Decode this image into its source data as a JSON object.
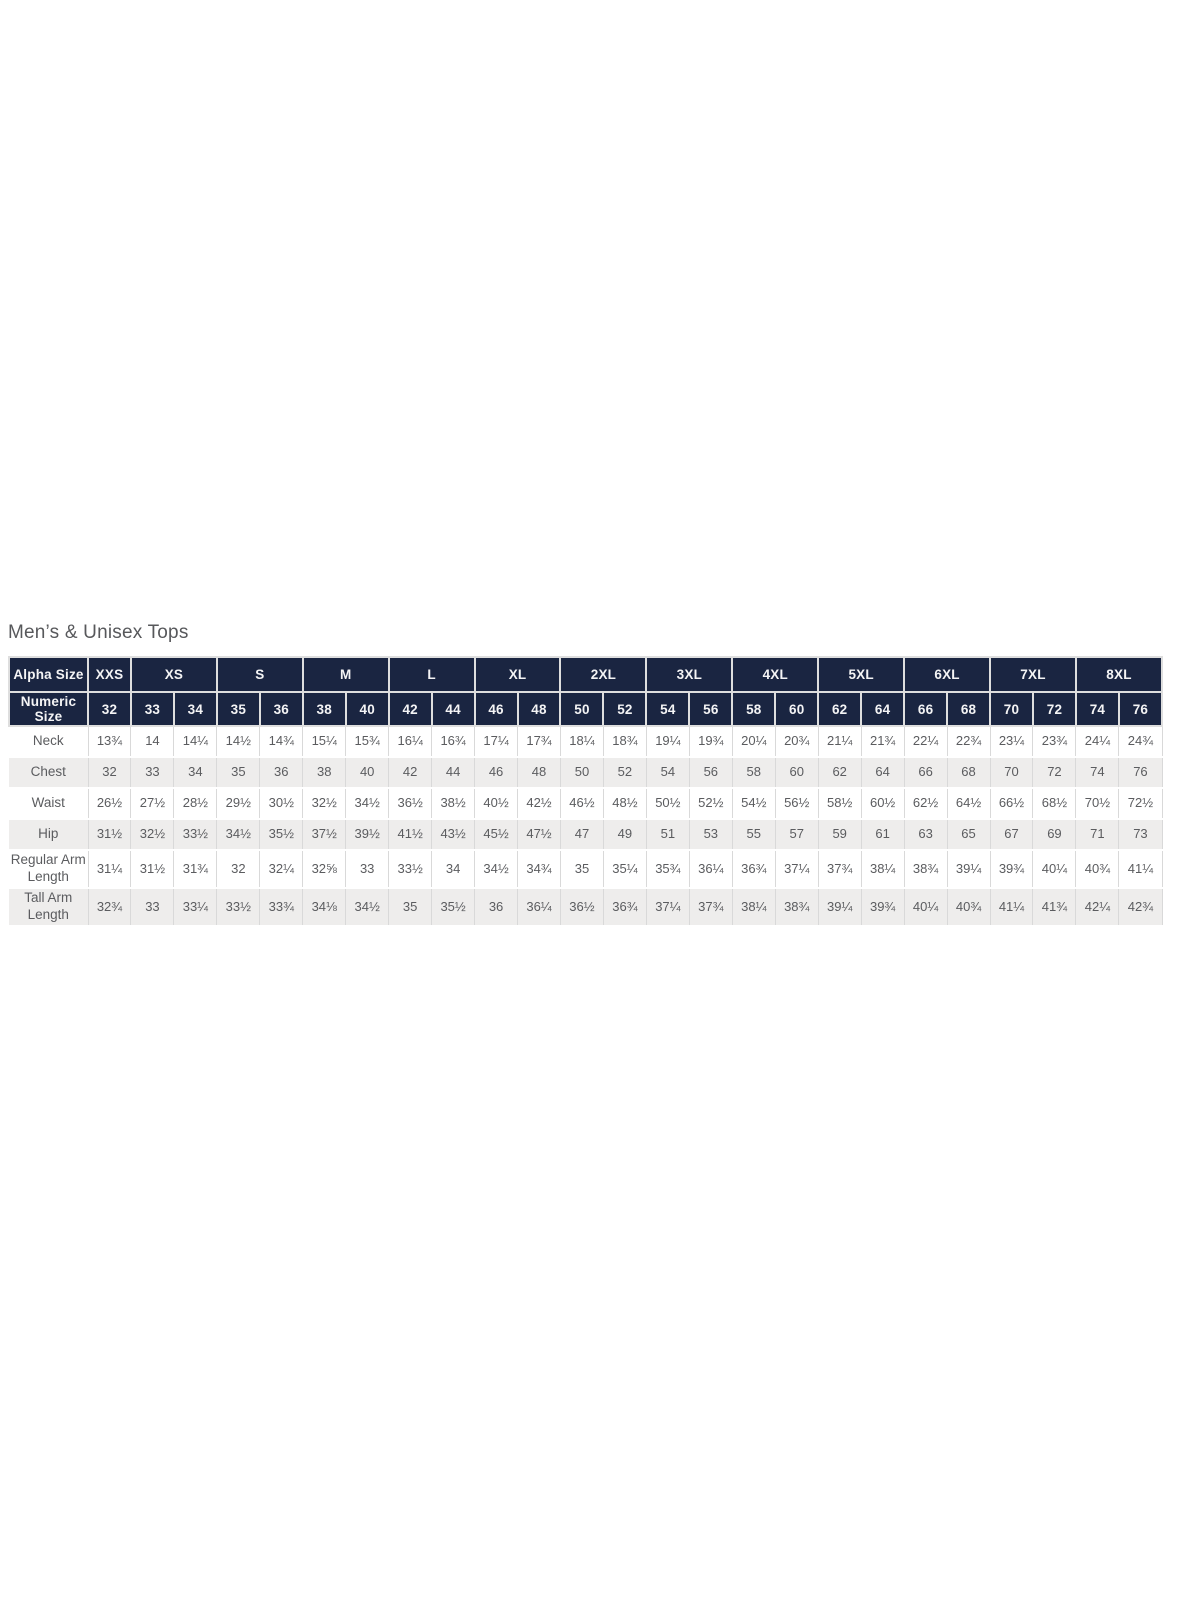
{
  "title": "Men’s & Unisex Tops",
  "colors": {
    "header_bg": "#1a2541",
    "header_text": "#f4f4f5",
    "body_text": "#5b5c5f",
    "row_bg": "#ffffff",
    "row_alt_bg": "#eeedec",
    "border": "#d9d9d9",
    "title_text": "#57585b"
  },
  "table": {
    "corner_label": "Alpha Size",
    "numeric_label": "Numeric Size",
    "alpha_sizes": [
      {
        "label": "XXS",
        "span": 1
      },
      {
        "label": "XS",
        "span": 2
      },
      {
        "label": "S",
        "span": 2
      },
      {
        "label": "M",
        "span": 2
      },
      {
        "label": "L",
        "span": 2
      },
      {
        "label": "XL",
        "span": 2
      },
      {
        "label": "2XL",
        "span": 2
      },
      {
        "label": "3XL",
        "span": 2
      },
      {
        "label": "4XL",
        "span": 2
      },
      {
        "label": "5XL",
        "span": 2
      },
      {
        "label": "6XL",
        "span": 2
      },
      {
        "label": "7XL",
        "span": 2
      },
      {
        "label": "8XL",
        "span": 2
      }
    ],
    "numeric_sizes": [
      "32",
      "33",
      "34",
      "35",
      "36",
      "38",
      "40",
      "42",
      "44",
      "46",
      "48",
      "50",
      "52",
      "54",
      "56",
      "58",
      "60",
      "62",
      "64",
      "66",
      "68",
      "70",
      "72",
      "74",
      "76"
    ],
    "rows": [
      {
        "label": "Neck",
        "values": [
          "13¾",
          "14",
          "14¼",
          "14½",
          "14¾",
          "15¼",
          "15¾",
          "16¼",
          "16¾",
          "17¼",
          "17¾",
          "18¼",
          "18¾",
          "19¼",
          "19¾",
          "20¼",
          "20¾",
          "21¼",
          "21¾",
          "22¼",
          "22¾",
          "23¼",
          "23¾",
          "24¼",
          "24¾"
        ]
      },
      {
        "label": "Chest",
        "values": [
          "32",
          "33",
          "34",
          "35",
          "36",
          "38",
          "40",
          "42",
          "44",
          "46",
          "48",
          "50",
          "52",
          "54",
          "56",
          "58",
          "60",
          "62",
          "64",
          "66",
          "68",
          "70",
          "72",
          "74",
          "76"
        ]
      },
      {
        "label": "Waist",
        "values": [
          "26½",
          "27½",
          "28½",
          "29½",
          "30½",
          "32½",
          "34½",
          "36½",
          "38½",
          "40½",
          "42½",
          "46½",
          "48½",
          "50½",
          "52½",
          "54½",
          "56½",
          "58½",
          "60½",
          "62½",
          "64½",
          "66½",
          "68½",
          "70½",
          "72½"
        ]
      },
      {
        "label": "Hip",
        "values": [
          "31½",
          "32½",
          "33½",
          "34½",
          "35½",
          "37½",
          "39½",
          "41½",
          "43½",
          "45½",
          "47½",
          "47",
          "49",
          "51",
          "53",
          "55",
          "57",
          "59",
          "61",
          "63",
          "65",
          "67",
          "69",
          "71",
          "73"
        ]
      },
      {
        "label": "Regular Arm Length",
        "values": [
          "31¼",
          "31½",
          "31¾",
          "32",
          "32¼",
          "32⅝",
          "33",
          "33½",
          "34",
          "34½",
          "34¾",
          "35",
          "35¼",
          "35¾",
          "36¼",
          "36¾",
          "37¼",
          "37¾",
          "38¼",
          "38¾",
          "39¼",
          "39¾",
          "40¼",
          "40¾",
          "41¼"
        ]
      },
      {
        "label": "Tall Arm Length",
        "values": [
          "32¾",
          "33",
          "33¼",
          "33½",
          "33¾",
          "34⅛",
          "34½",
          "35",
          "35½",
          "36",
          "36¼",
          "36½",
          "36¾",
          "37¼",
          "37¾",
          "38¼",
          "38¾",
          "39¼",
          "39¾",
          "40¼",
          "40¾",
          "41¼",
          "41¾",
          "42¼",
          "42¾"
        ]
      }
    ]
  }
}
